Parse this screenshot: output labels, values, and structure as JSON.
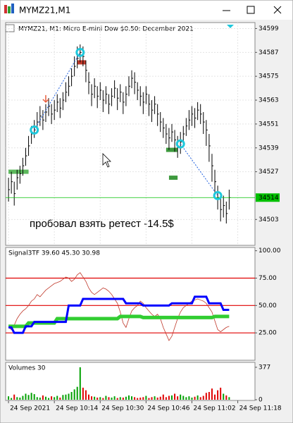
{
  "window": {
    "title": "MYMZ21,M1"
  },
  "x_axis": {
    "xlim": [
      -1,
      86
    ],
    "xticks": [
      {
        "value": 0,
        "label": "24 Sep 2021"
      },
      {
        "value": 16,
        "label": "24 Sep 10:14"
      },
      {
        "value": 32,
        "label": "24 Sep 10:30"
      },
      {
        "value": 48,
        "label": "24 Sep 10:46"
      },
      {
        "value": 64,
        "label": "24 Sep 11:02"
      },
      {
        "value": 80,
        "label": "24 Sep 11:18"
      }
    ]
  },
  "chart_data": [
    {
      "type": "ohlc",
      "title": "MYMZ21, M1:  Micro E-mini Dow $0.50: December 2021",
      "color": "#000000",
      "grid": true,
      "ylim": [
        34490,
        34602
      ],
      "yticks": [
        34599,
        34587,
        34575,
        34563,
        34551,
        34539,
        34527,
        34503
      ],
      "high": [
        34524,
        34527,
        34522,
        34528,
        34530,
        34534,
        34539,
        34545,
        34550,
        34553,
        34557,
        34560,
        34558,
        34561,
        34564,
        34561,
        34563,
        34566,
        34564,
        34567,
        34572,
        34575,
        34579,
        34585,
        34590,
        34591,
        34590,
        34583,
        34577,
        34571,
        34574,
        34570,
        34572,
        34568,
        34570,
        34566,
        34569,
        34573,
        34569,
        34571,
        34567,
        34570,
        34575,
        34578,
        34577,
        34572,
        34570,
        34567,
        34570,
        34566,
        34563,
        34565,
        34561,
        34557,
        34554,
        34551,
        34549,
        34551,
        34548,
        34545,
        34547,
        34550,
        34554,
        34558,
        34560,
        34559,
        34562,
        34561,
        34557,
        34553,
        34546,
        34536,
        34528,
        34520,
        34514,
        34515,
        34512,
        34518
      ],
      "low": [
        34512,
        34516,
        34510,
        34518,
        34521,
        34525,
        34530,
        34535,
        34541,
        34544,
        34547,
        34550,
        34548,
        34552,
        34555,
        34551,
        34553,
        34557,
        34554,
        34558,
        34562,
        34565,
        34570,
        34575,
        34579,
        34582,
        34580,
        34572,
        34566,
        34560,
        34564,
        34559,
        34563,
        34557,
        34561,
        34556,
        34560,
        34564,
        34558,
        34562,
        34556,
        34560,
        34565,
        34569,
        34566,
        34563,
        34560,
        34556,
        34561,
        34555,
        34552,
        34556,
        34550,
        34547,
        34544,
        34541,
        34538,
        34542,
        34537,
        34534,
        34536,
        34540,
        34545,
        34548,
        34550,
        34549,
        34553,
        34551,
        34546,
        34540,
        34532,
        34522,
        34515,
        34508,
        34502,
        34504,
        34501,
        34508
      ],
      "close": [
        34518,
        34522,
        34516,
        34524,
        34526,
        34530,
        34535,
        34540,
        34546,
        34548,
        34552,
        34555,
        34553,
        34557,
        34560,
        34556,
        34558,
        34562,
        34559,
        34563,
        34567,
        34570,
        34575,
        34580,
        34584,
        34587,
        34585,
        34578,
        34572,
        34566,
        34570,
        34565,
        34568,
        34563,
        34566,
        34561,
        34565,
        34569,
        34564,
        34567,
        34562,
        34566,
        34570,
        34574,
        34572,
        34568,
        34565,
        34562,
        34566,
        34561,
        34558,
        34561,
        34556,
        34552,
        34549,
        34546,
        34544,
        34547,
        34543,
        34540,
        34542,
        34546,
        34550,
        34553,
        34556,
        34554,
        34558,
        34556,
        34552,
        34548,
        34540,
        34530,
        34522,
        34514,
        34508,
        34510,
        34506,
        34514
      ],
      "bid": 34514,
      "bid_color": "#00c000",
      "annotation": "пробовал взять ретест -14.5$",
      "trade_color": "#1ec8dc",
      "trades": [
        {
          "open_x": 9,
          "open_price": 34548,
          "close_x": 25,
          "close_price": 34587
        },
        {
          "open_x": 60,
          "open_price": 34541,
          "close_x": 73,
          "close_price": 34515
        }
      ],
      "levels": [
        {
          "x0": 0,
          "x1": 7,
          "price": 34527,
          "color": "#5cb85c"
        },
        {
          "x0": 24,
          "x1": 27,
          "price": 34582,
          "color": "#c0392b"
        },
        {
          "x0": 55,
          "x1": 59,
          "price": 34538,
          "color": "#3e9a3e"
        },
        {
          "x0": 56,
          "x1": 59,
          "price": 34524,
          "color": "#3e9a3e"
        }
      ],
      "arrows": [
        {
          "x": 13,
          "price": 34562,
          "color": "#e86040"
        }
      ]
    },
    {
      "type": "line",
      "title": "Signal3TF 39.60 45.30 30.98",
      "ylim": [
        0,
        103
      ],
      "yticks": [
        {
          "value": 100,
          "label": "100.00"
        },
        {
          "value": 75,
          "label": "75.00"
        },
        {
          "value": 50,
          "label": "50.00"
        },
        {
          "value": 25,
          "label": "25.00"
        }
      ],
      "levels": [
        75,
        50,
        25
      ],
      "level_color": "#e00000",
      "series": [
        {
          "color": "#c0392b",
          "values": [
            30,
            28,
            32,
            38,
            42,
            45,
            47,
            50,
            54,
            56,
            60,
            58,
            61,
            64,
            66,
            68,
            70,
            71,
            72,
            74,
            76,
            75,
            72,
            74,
            78,
            80,
            76,
            72,
            66,
            62,
            60,
            62,
            64,
            66,
            65,
            63,
            60,
            56,
            52,
            44,
            34,
            30,
            38,
            45,
            48,
            50,
            54,
            52,
            48,
            45,
            42,
            40,
            42,
            38,
            30,
            24,
            18,
            22,
            30,
            38,
            44,
            48,
            50,
            52,
            54,
            55,
            56,
            55,
            54,
            52,
            48,
            44,
            36,
            28,
            26,
            28,
            30,
            31
          ]
        },
        {
          "color": "#32cd32",
          "values": [
            31,
            31,
            31,
            31,
            31,
            31,
            31,
            34,
            34,
            34,
            34,
            34,
            34,
            34,
            34,
            34,
            34,
            38,
            38,
            38,
            38,
            38,
            38,
            38,
            38,
            38,
            38,
            38,
            38,
            38,
            38,
            38,
            38,
            38,
            38,
            38,
            38,
            38,
            38,
            40,
            40,
            40,
            40,
            40,
            40,
            40,
            40,
            39,
            39,
            39,
            39,
            39,
            39,
            39,
            39,
            39,
            39,
            39,
            39,
            39,
            39,
            39,
            39,
            39,
            39,
            39,
            39,
            39,
            39,
            39,
            39,
            39,
            40,
            40,
            40,
            40,
            40,
            40
          ]
        },
        {
          "color": "#0000ff",
          "values": [
            30,
            30,
            25,
            25,
            25,
            25,
            31,
            31,
            31,
            35,
            35,
            35,
            35,
            35,
            35,
            35,
            35,
            35,
            35,
            35,
            35,
            50,
            50,
            50,
            50,
            50,
            56,
            56,
            56,
            56,
            56,
            56,
            56,
            56,
            56,
            56,
            56,
            56,
            56,
            56,
            56,
            52,
            52,
            52,
            52,
            52,
            52,
            50,
            50,
            50,
            50,
            50,
            50,
            50,
            50,
            50,
            50,
            52,
            52,
            52,
            52,
            52,
            52,
            52,
            52,
            58,
            58,
            58,
            58,
            58,
            52,
            52,
            52,
            52,
            52,
            46,
            46,
            46
          ]
        }
      ]
    },
    {
      "type": "bar",
      "title": "Volumes 30",
      "up_color": "#00a000",
      "down_color": "#e00000",
      "ylim": [
        0,
        434
      ],
      "yticks": [
        377,
        0
      ],
      "values": [
        40,
        20,
        60,
        30,
        25,
        45,
        70,
        55,
        80,
        65,
        30,
        25,
        50,
        35,
        20,
        40,
        30,
        45,
        25,
        55,
        60,
        70,
        90,
        120,
        150,
        377,
        140,
        110,
        60,
        40,
        35,
        25,
        30,
        20,
        45,
        30,
        25,
        40,
        20,
        30,
        25,
        35,
        50,
        40,
        30,
        20,
        25,
        30,
        45,
        20,
        30,
        40,
        25,
        35,
        60,
        30,
        45,
        50,
        70,
        40,
        60,
        45,
        30,
        40,
        25,
        35,
        50,
        30,
        45,
        80,
        90,
        130,
        60,
        110,
        140,
        70,
        50,
        30
      ]
    }
  ]
}
